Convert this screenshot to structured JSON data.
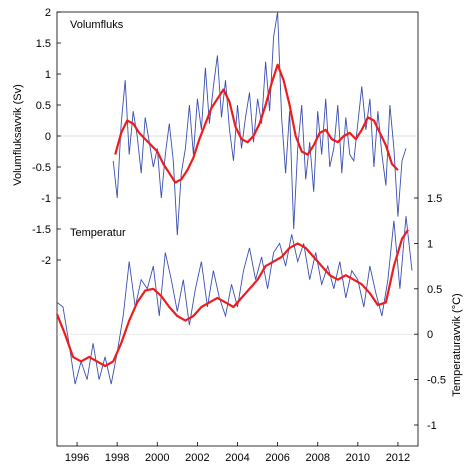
{
  "chart_data": {
    "type": "line",
    "x_ticks": [
      1996,
      1998,
      2000,
      2002,
      2004,
      2006,
      2008,
      2010,
      2012
    ],
    "left_axis": {
      "title": "Volumfluksavvik (Sv)",
      "ticks": [
        "2",
        "1.5",
        "1",
        "0.5",
        "0",
        "-0.5",
        "-1",
        "-1.5",
        "-2"
      ],
      "range": [
        -2,
        2
      ]
    },
    "right_axis": {
      "title": "Temperaturavvik (°C)",
      "ticks": [
        "1.5",
        "1",
        "0.5",
        "0",
        "-0.5",
        "-1"
      ],
      "range": [
        -1,
        1.5
      ]
    },
    "panel_labels": {
      "top": "Volumfluks",
      "bottom": "Temperatur"
    },
    "colors": {
      "raw": "#3b4fb0",
      "smooth": "#ee1c1c"
    },
    "volume_flux_monthly": {
      "x": [
        1997.8,
        1998.0,
        1998.2,
        1998.4,
        1998.6,
        1998.8,
        1999.0,
        1999.2,
        1999.4,
        1999.6,
        1999.8,
        2000.0,
        2000.2,
        2000.4,
        2000.6,
        2000.8,
        2001.0,
        2001.2,
        2001.4,
        2001.6,
        2001.8,
        2002.0,
        2002.2,
        2002.4,
        2002.6,
        2002.8,
        2003.0,
        2003.2,
        2003.4,
        2003.6,
        2003.8,
        2004.0,
        2004.2,
        2004.4,
        2004.6,
        2004.8,
        2005.0,
        2005.2,
        2005.4,
        2005.6,
        2005.8,
        2006.0,
        2006.2,
        2006.4,
        2006.6,
        2006.8,
        2007.0,
        2007.2,
        2007.4,
        2007.6,
        2007.8,
        2008.0,
        2008.2,
        2008.4,
        2008.6,
        2008.8,
        2009.0,
        2009.2,
        2009.4,
        2009.6,
        2009.8,
        2010.0,
        2010.2,
        2010.4,
        2010.6,
        2010.8,
        2011.0,
        2011.2,
        2011.4,
        2011.6,
        2011.8,
        2012.0,
        2012.2,
        2012.4
      ],
      "values": [
        -0.4,
        -1.0,
        0.2,
        0.9,
        -0.3,
        0.4,
        0.0,
        -0.6,
        0.3,
        -0.1,
        -0.5,
        -0.2,
        -1.0,
        -0.3,
        0.2,
        -0.4,
        -1.6,
        -0.6,
        -0.2,
        0.5,
        -0.3,
        0.6,
        0.1,
        1.1,
        0.2,
        0.8,
        1.3,
        0.3,
        0.9,
        0.1,
        -0.4,
        0.5,
        -0.2,
        0.3,
        0.7,
        -0.1,
        0.6,
        0.2,
        1.2,
        0.4,
        1.6,
        2.0,
        0.3,
        -0.6,
        0.4,
        -1.5,
        -0.2,
        0.5,
        -0.7,
        -0.1,
        -0.9,
        0.4,
        -0.3,
        0.6,
        -0.5,
        -0.2,
        0.5,
        -0.6,
        0.3,
        -0.3,
        -0.4,
        0.2,
        0.8,
        0.1,
        0.6,
        -0.5,
        0.4,
        -0.3,
        -0.8,
        0.5,
        -0.2,
        -1.3,
        -0.4,
        -0.2
      ]
    },
    "volume_flux_smoothed": {
      "x": [
        1997.9,
        1998.2,
        1998.5,
        1998.8,
        1999.1,
        1999.4,
        1999.7,
        2000.0,
        2000.3,
        2000.6,
        2000.9,
        2001.2,
        2001.5,
        2001.8,
        2002.1,
        2002.4,
        2002.7,
        2003.0,
        2003.3,
        2003.6,
        2003.9,
        2004.2,
        2004.5,
        2004.8,
        2005.1,
        2005.4,
        2005.7,
        2006.0,
        2006.3,
        2006.6,
        2006.9,
        2007.2,
        2007.5,
        2007.8,
        2008.1,
        2008.4,
        2008.7,
        2009.0,
        2009.3,
        2009.6,
        2009.9,
        2010.2,
        2010.5,
        2010.8,
        2011.1,
        2011.4,
        2011.7,
        2012.0
      ],
      "values": [
        -0.3,
        0.05,
        0.25,
        0.2,
        0.05,
        -0.05,
        -0.15,
        -0.25,
        -0.45,
        -0.6,
        -0.75,
        -0.7,
        -0.55,
        -0.35,
        -0.05,
        0.2,
        0.45,
        0.6,
        0.75,
        0.55,
        0.15,
        -0.05,
        -0.1,
        0.0,
        0.2,
        0.5,
        0.85,
        1.15,
        0.9,
        0.5,
        0.0,
        -0.25,
        -0.3,
        -0.15,
        0.05,
        0.1,
        -0.05,
        -0.1,
        0.0,
        0.05,
        -0.05,
        0.1,
        0.3,
        0.25,
        0.05,
        -0.15,
        -0.45,
        -0.55
      ]
    },
    "temperature_monthly": {
      "x": [
        1995.0,
        1995.3,
        1995.6,
        1995.9,
        1996.2,
        1996.5,
        1996.8,
        1997.1,
        1997.4,
        1997.7,
        1998.0,
        1998.3,
        1998.6,
        1998.9,
        1999.2,
        1999.5,
        1999.8,
        2000.1,
        2000.4,
        2000.7,
        2001.0,
        2001.3,
        2001.6,
        2001.9,
        2002.2,
        2002.5,
        2002.8,
        2003.1,
        2003.4,
        2003.7,
        2004.0,
        2004.3,
        2004.6,
        2004.9,
        2005.2,
        2005.5,
        2005.8,
        2006.1,
        2006.4,
        2006.7,
        2007.0,
        2007.3,
        2007.6,
        2007.9,
        2008.2,
        2008.5,
        2008.8,
        2009.1,
        2009.4,
        2009.7,
        2010.0,
        2010.3,
        2010.6,
        2010.9,
        2011.2,
        2011.5,
        2011.8,
        2012.1,
        2012.4,
        2012.7
      ],
      "values": [
        0.35,
        0.3,
        -0.1,
        -0.55,
        -0.3,
        -0.5,
        -0.1,
        -0.5,
        -0.25,
        -0.55,
        -0.2,
        0.2,
        0.8,
        0.3,
        0.6,
        0.5,
        0.75,
        0.2,
        0.9,
        0.6,
        0.25,
        0.6,
        0.1,
        0.5,
        0.8,
        0.3,
        0.7,
        0.4,
        0.2,
        0.55,
        0.3,
        0.7,
        0.95,
        0.6,
        0.85,
        0.5,
        0.9,
        1.0,
        0.75,
        1.1,
        0.8,
        1.0,
        0.6,
        0.9,
        0.55,
        0.75,
        0.5,
        0.8,
        0.4,
        0.7,
        0.6,
        0.3,
        0.75,
        0.45,
        0.2,
        0.6,
        1.25,
        0.5,
        1.3,
        0.7
      ]
    },
    "temperature_smoothed": {
      "x": [
        1995.0,
        1995.4,
        1995.8,
        1996.2,
        1996.6,
        1997.0,
        1997.4,
        1997.8,
        1998.2,
        1998.6,
        1999.0,
        1999.4,
        1999.8,
        2000.2,
        2000.6,
        2001.0,
        2001.4,
        2001.8,
        2002.2,
        2002.6,
        2003.0,
        2003.4,
        2003.8,
        2004.2,
        2004.6,
        2005.0,
        2005.4,
        2005.8,
        2006.2,
        2006.6,
        2007.0,
        2007.4,
        2007.8,
        2008.2,
        2008.6,
        2009.0,
        2009.4,
        2009.8,
        2010.2,
        2010.6,
        2011.0,
        2011.4,
        2011.8,
        2012.2,
        2012.5
      ],
      "values": [
        0.22,
        0.0,
        -0.25,
        -0.3,
        -0.25,
        -0.3,
        -0.35,
        -0.3,
        -0.1,
        0.15,
        0.35,
        0.48,
        0.5,
        0.42,
        0.3,
        0.2,
        0.15,
        0.2,
        0.3,
        0.35,
        0.4,
        0.35,
        0.3,
        0.4,
        0.5,
        0.6,
        0.75,
        0.8,
        0.85,
        0.95,
        1.0,
        0.95,
        0.85,
        0.75,
        0.65,
        0.6,
        0.65,
        0.6,
        0.55,
        0.45,
        0.32,
        0.35,
        0.75,
        1.05,
        1.15
      ]
    }
  }
}
